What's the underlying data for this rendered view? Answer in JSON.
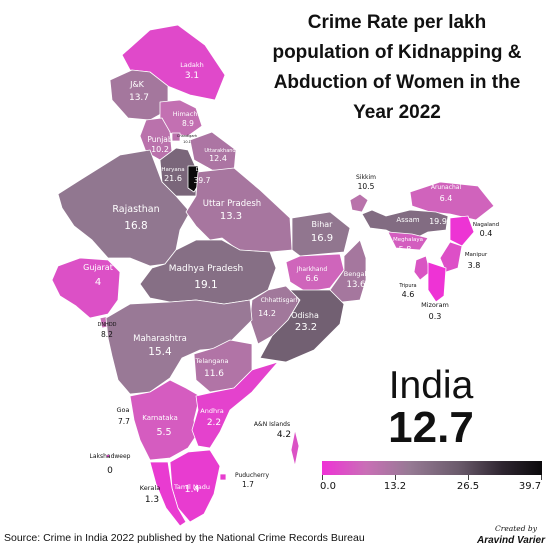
{
  "title_lines": [
    "Crime Rate per lakh",
    "population of Kidnapping &",
    "Abduction of Women in the",
    "Year 2022"
  ],
  "national": {
    "name": "India",
    "value": "12.7"
  },
  "legend": {
    "min": 0.0,
    "max": 39.7,
    "ticks": [
      "0.0",
      "13.2",
      "26.5",
      "39.7"
    ]
  },
  "source": "Source: Crime in India 2022 published by the National Crime Records Bureau",
  "credit": {
    "line1": "Created by",
    "line2": "Aravind Varier"
  },
  "regions": [
    {
      "id": "ladakh",
      "name": "Ladakh",
      "value": 3.1
    },
    {
      "id": "jk",
      "name": "J&K",
      "value": 13.7
    },
    {
      "id": "himachal",
      "name": "Himachal",
      "value": 8.9
    },
    {
      "id": "chandigarh",
      "name": "Chandigarh",
      "value": 10.1
    },
    {
      "id": "punjab",
      "name": "Punjab",
      "value": 10.2
    },
    {
      "id": "uttarakhand",
      "name": "Uttarakhand",
      "value": 12.4
    },
    {
      "id": "haryana",
      "name": "Haryana",
      "value": 21.6
    },
    {
      "id": "delhi",
      "name": "Delhi",
      "value": 39.7
    },
    {
      "id": "rajasthan",
      "name": "Rajasthan",
      "value": 16.8
    },
    {
      "id": "up",
      "name": "Uttar Pradesh",
      "value": 13.3
    },
    {
      "id": "bihar",
      "name": "Bihar",
      "value": 16.9
    },
    {
      "id": "sikkim",
      "name": "Sikkim",
      "value": 10.5
    },
    {
      "id": "arunachal",
      "name": "Arunachal",
      "value": 6.4
    },
    {
      "id": "assam",
      "name": "Assam",
      "value": 19.9
    },
    {
      "id": "nagaland",
      "name": "Nagaland",
      "value": 0.4
    },
    {
      "id": "meghalaya",
      "name": "Meghalaya",
      "value": 5.8
    },
    {
      "id": "manipur",
      "name": "Manipur",
      "value": 3.8
    },
    {
      "id": "tripura",
      "name": "Tripura",
      "value": 4.6
    },
    {
      "id": "mizoram",
      "name": "Mizoram",
      "value": 0.3
    },
    {
      "id": "gujarat",
      "name": "Gujarat",
      "value": 4
    },
    {
      "id": "mp",
      "name": "Madhya Pradesh",
      "value": 19.1
    },
    {
      "id": "jharkhand",
      "name": "Jharkhand",
      "value": 6.6
    },
    {
      "id": "bengal",
      "name": "Bengal",
      "value": 13.6
    },
    {
      "id": "chhattisgarh",
      "name": "Chhattisgarh",
      "value": 14.2
    },
    {
      "id": "odisha",
      "name": "Odisha",
      "value": 23.2
    },
    {
      "id": "dnhdd",
      "name": "DNHDD",
      "value": 8.2
    },
    {
      "id": "maharashtra",
      "name": "Maharashtra",
      "value": 15.4
    },
    {
      "id": "telangana",
      "name": "Telangana",
      "value": 11.6
    },
    {
      "id": "goa",
      "name": "Goa",
      "value": 7.7
    },
    {
      "id": "karnataka",
      "name": "Karnataka",
      "value": 5.5
    },
    {
      "id": "andhra",
      "name": "Andhra",
      "value": 2.2
    },
    {
      "id": "an",
      "name": "A&N Islands",
      "value": 4.2
    },
    {
      "id": "lakshadweep",
      "name": "Lakshadweep",
      "value": 0
    },
    {
      "id": "tamilnadu",
      "name": "Tamil Nadu",
      "value": 1.4
    },
    {
      "id": "puducherry",
      "name": "Puducherry",
      "value": 1.7
    },
    {
      "id": "kerala",
      "name": "Kerala",
      "value": 1.3
    }
  ]
}
